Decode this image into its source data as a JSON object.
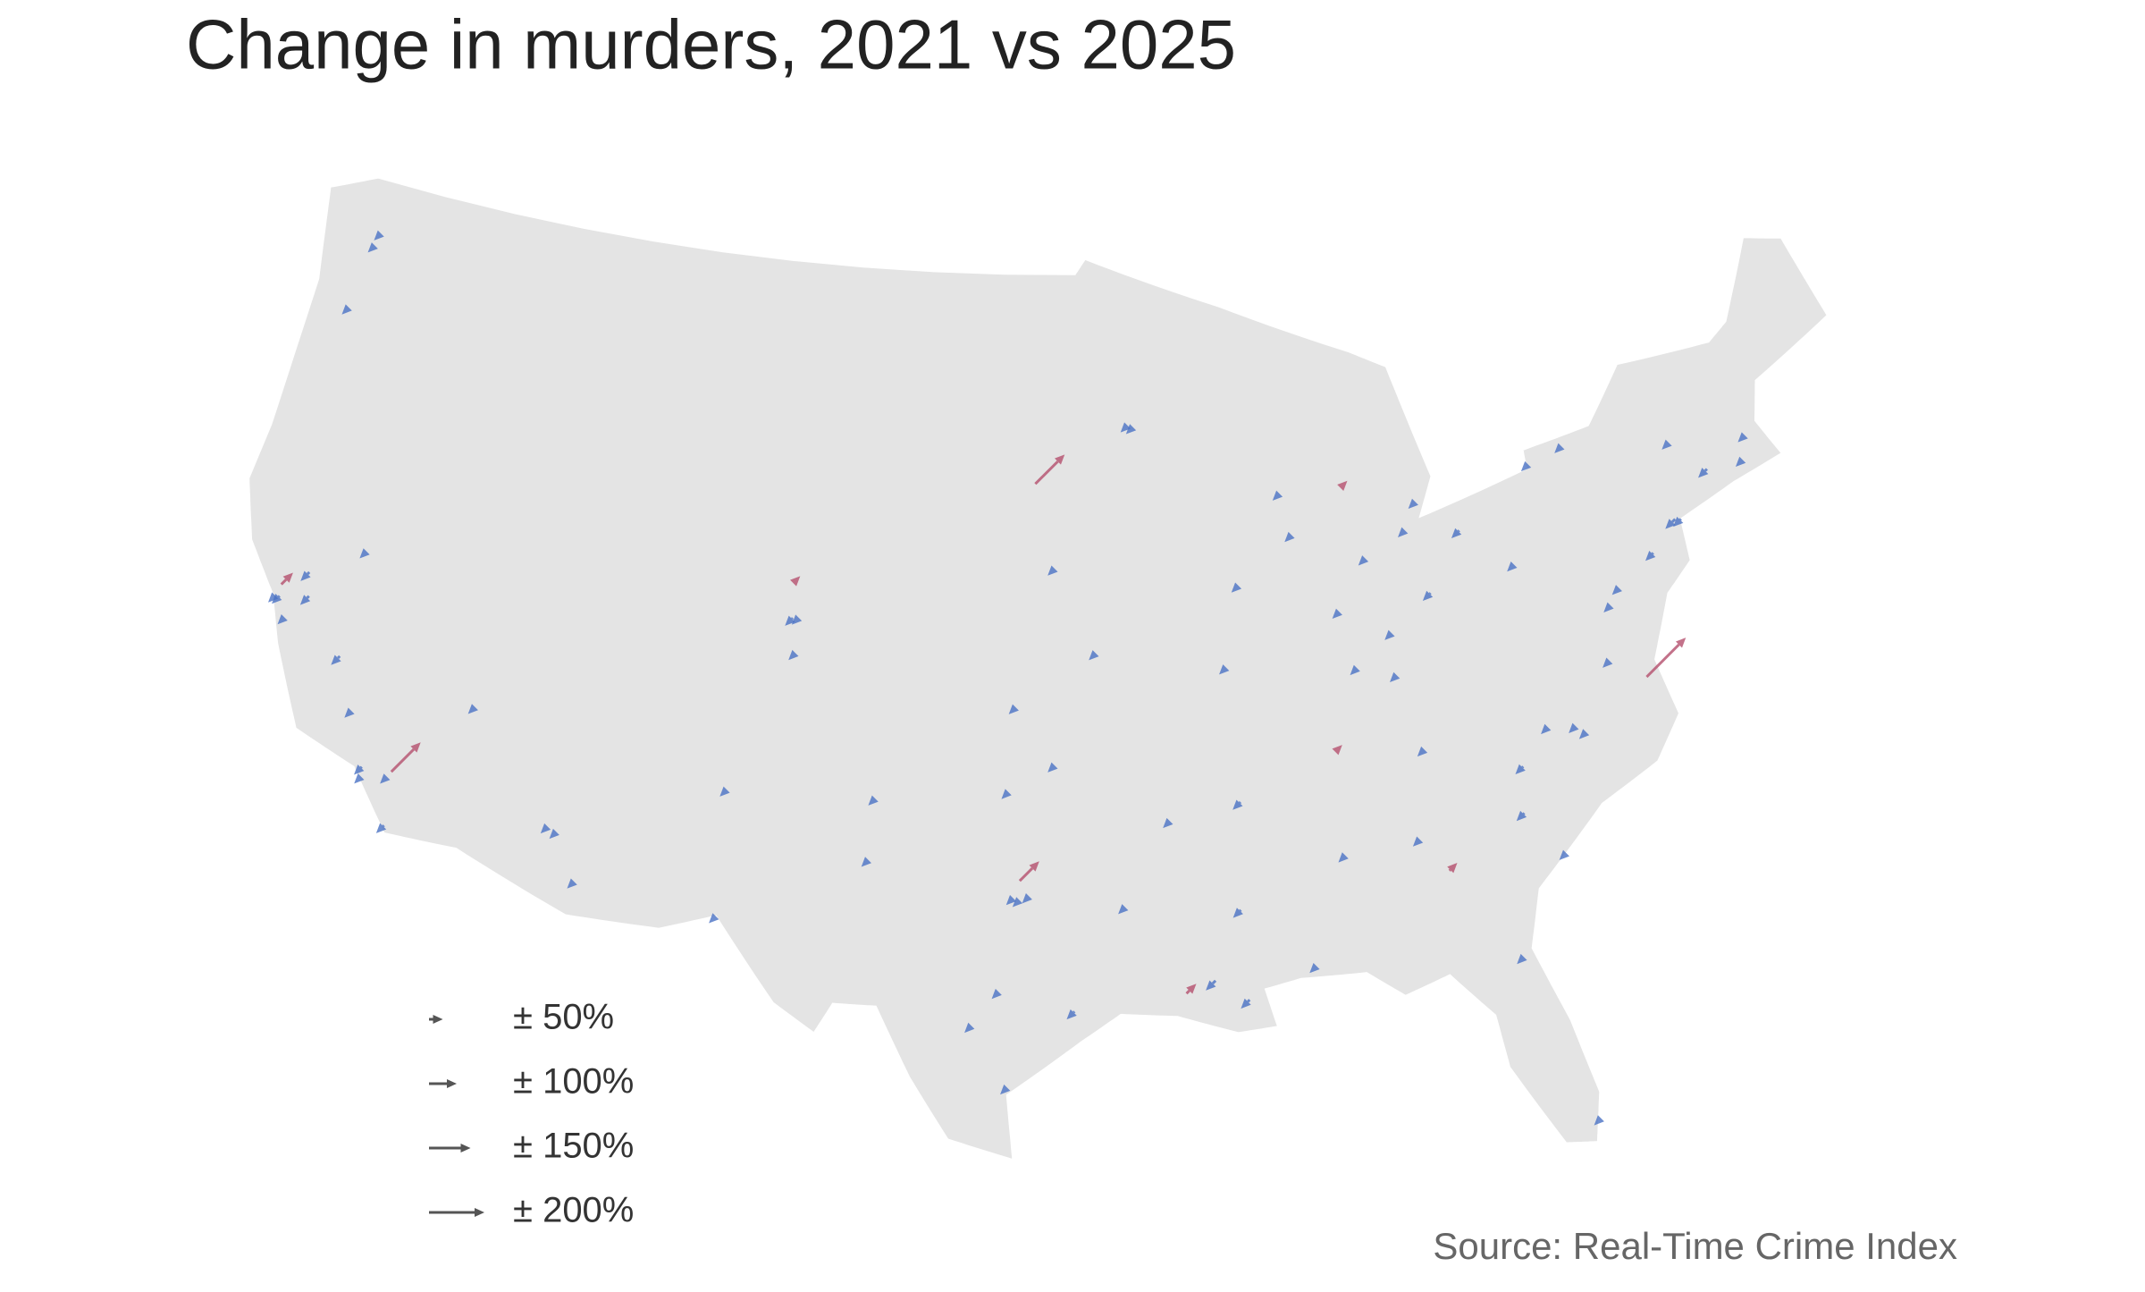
{
  "title": "Change in murders, 2021 vs 2025",
  "source": "Source: Real-Time Crime Index",
  "colors": {
    "increase": "#b5506e",
    "decrease": "#4a72c4",
    "legend": "#555555"
  },
  "legend": {
    "keys": [
      {
        "value": 50,
        "label": "± 50%"
      },
      {
        "value": 100,
        "label": "± 100%"
      },
      {
        "value": 150,
        "label": "± 150%"
      },
      {
        "value": 200,
        "label": "± 200%"
      }
    ]
  },
  "markers": [
    {
      "lon": -122.3,
      "lat": 47.6,
      "change": -30
    },
    {
      "lon": -122.4,
      "lat": 47.25,
      "change": -35
    },
    {
      "lon": -122.7,
      "lat": 45.5,
      "change": -30
    },
    {
      "lon": -122.4,
      "lat": 37.78,
      "change": -35
    },
    {
      "lon": -122.25,
      "lat": 37.8,
      "change": -40
    },
    {
      "lon": -122.3,
      "lat": 38.1,
      "change": 60
    },
    {
      "lon": -121.9,
      "lat": 37.3,
      "change": -30
    },
    {
      "lon": -121.5,
      "lat": 38.6,
      "change": -45
    },
    {
      "lon": -121.3,
      "lat": 38.0,
      "change": -45
    },
    {
      "lon": -119.8,
      "lat": 36.7,
      "change": -45
    },
    {
      "lon": -119.0,
      "lat": 35.4,
      "change": -25
    },
    {
      "lon": -118.25,
      "lat": 34.05,
      "change": -40
    },
    {
      "lon": -118.2,
      "lat": 33.8,
      "change": -30
    },
    {
      "lon": -117.3,
      "lat": 34.1,
      "change": 150
    },
    {
      "lon": -117.4,
      "lat": 33.95,
      "change": -25
    },
    {
      "lon": -117.15,
      "lat": 32.7,
      "change": -40
    },
    {
      "lon": -115.1,
      "lat": 36.2,
      "change": -35
    },
    {
      "lon": -119.8,
      "lat": 39.5,
      "change": -20
    },
    {
      "lon": -112.1,
      "lat": 33.5,
      "change": -35
    },
    {
      "lon": -111.8,
      "lat": 33.4,
      "change": -35
    },
    {
      "lon": -111.0,
      "lat": 32.2,
      "change": -20
    },
    {
      "lon": -106.6,
      "lat": 35.1,
      "change": -30
    },
    {
      "lon": -106.5,
      "lat": 31.8,
      "change": -20
    },
    {
      "lon": -105.0,
      "lat": 39.7,
      "change": -40
    },
    {
      "lon": -104.8,
      "lat": 39.72,
      "change": -30
    },
    {
      "lon": -104.8,
      "lat": 38.8,
      "change": -20
    },
    {
      "lon": -105.1,
      "lat": 40.6,
      "change": 30
    },
    {
      "lon": -93.3,
      "lat": 45.0,
      "change": -30
    },
    {
      "lon": -93.1,
      "lat": 44.95,
      "change": -25
    },
    {
      "lon": -96.7,
      "lat": 43.5,
      "change": 150
    },
    {
      "lon": -96.0,
      "lat": 41.3,
      "change": -25
    },
    {
      "lon": -94.6,
      "lat": 39.1,
      "change": -30
    },
    {
      "lon": -97.3,
      "lat": 37.7,
      "change": -30
    },
    {
      "lon": -97.5,
      "lat": 35.5,
      "change": -25
    },
    {
      "lon": -96.0,
      "lat": 36.2,
      "change": -35
    },
    {
      "lon": -101.9,
      "lat": 33.6,
      "change": -30
    },
    {
      "lon": -101.8,
      "lat": 35.2,
      "change": -20
    },
    {
      "lon": -96.8,
      "lat": 32.8,
      "change": -35
    },
    {
      "lon": -97.3,
      "lat": 32.75,
      "change": -25
    },
    {
      "lon": -97.1,
      "lat": 32.7,
      "change": -30
    },
    {
      "lon": -97.1,
      "lat": 33.2,
      "change": 100
    },
    {
      "lon": -97.7,
      "lat": 30.3,
      "change": -30
    },
    {
      "lon": -98.5,
      "lat": 29.4,
      "change": -35
    },
    {
      "lon": -95.4,
      "lat": 29.8,
      "change": -40
    },
    {
      "lon": -97.4,
      "lat": 27.8,
      "change": -30
    },
    {
      "lon": -93.8,
      "lat": 32.5,
      "change": -35
    },
    {
      "lon": -92.3,
      "lat": 34.7,
      "change": -35
    },
    {
      "lon": -91.1,
      "lat": 30.5,
      "change": -50
    },
    {
      "lon": -92.0,
      "lat": 30.2,
      "change": 50
    },
    {
      "lon": -90.1,
      "lat": 29.95,
      "change": -45
    },
    {
      "lon": -90.2,
      "lat": 32.3,
      "change": -40
    },
    {
      "lon": -90.0,
      "lat": 35.1,
      "change": -40
    },
    {
      "lon": -86.8,
      "lat": 36.2,
      "change": 20
    },
    {
      "lon": -86.8,
      "lat": 33.5,
      "change": -20
    },
    {
      "lon": -88.0,
      "lat": 30.7,
      "change": -20
    },
    {
      "lon": -84.4,
      "lat": 33.7,
      "change": -35
    },
    {
      "lon": -83.6,
      "lat": 32.8,
      "change": 40
    },
    {
      "lon": -81.7,
      "lat": 30.3,
      "change": -20
    },
    {
      "lon": -80.2,
      "lat": 25.8,
      "change": -30
    },
    {
      "lon": -80.8,
      "lat": 35.2,
      "change": -40
    },
    {
      "lon": -78.6,
      "lat": 35.8,
      "change": -30
    },
    {
      "lon": -78.9,
      "lat": 36.0,
      "change": -25
    },
    {
      "lon": -79.8,
      "lat": 36.1,
      "change": -20
    },
    {
      "lon": -81.0,
      "lat": 34.0,
      "change": -40
    },
    {
      "lon": -79.9,
      "lat": 32.8,
      "change": -35
    },
    {
      "lon": -76.3,
      "lat": 36.9,
      "change": 200
    },
    {
      "lon": -77.4,
      "lat": 37.5,
      "change": -30
    },
    {
      "lon": -76.6,
      "lat": 39.3,
      "change": -30
    },
    {
      "lon": -77.0,
      "lat": 38.9,
      "change": -35
    },
    {
      "lon": -75.2,
      "lat": 40.0,
      "change": -40
    },
    {
      "lon": -74.0,
      "lat": 40.7,
      "change": -40
    },
    {
      "lon": -74.2,
      "lat": 40.73,
      "change": -50
    },
    {
      "lon": -71.1,
      "lat": 42.4,
      "change": -20
    },
    {
      "lon": -72.7,
      "lat": 41.8,
      "change": -45
    },
    {
      "lon": -71.4,
      "lat": 41.8,
      "change": -20
    },
    {
      "lon": -78.9,
      "lat": 42.9,
      "change": -35
    },
    {
      "lon": -77.6,
      "lat": 43.2,
      "change": -20
    },
    {
      "lon": -73.8,
      "lat": 42.7,
      "change": -20
    },
    {
      "lon": -80.0,
      "lat": 40.4,
      "change": -30
    },
    {
      "lon": -81.7,
      "lat": 41.5,
      "change": -40
    },
    {
      "lon": -83.6,
      "lat": 41.7,
      "change": -30
    },
    {
      "lon": -83.0,
      "lat": 40.0,
      "change": -40
    },
    {
      "lon": -84.5,
      "lat": 39.1,
      "change": -25
    },
    {
      "lon": -83.1,
      "lat": 42.4,
      "change": -30
    },
    {
      "lon": -85.7,
      "lat": 43.0,
      "change": 25
    },
    {
      "lon": -87.6,
      "lat": 41.9,
      "change": -30
    },
    {
      "lon": -87.9,
      "lat": 43.0,
      "change": -20
    },
    {
      "lon": -86.2,
      "lat": 39.8,
      "change": -20
    },
    {
      "lon": -85.1,
      "lat": 41.1,
      "change": -20
    },
    {
      "lon": -85.8,
      "lat": 38.3,
      "change": -30
    },
    {
      "lon": -84.5,
      "lat": 38.0,
      "change": -35
    },
    {
      "lon": -90.2,
      "lat": 38.6,
      "change": -20
    },
    {
      "lon": -89.6,
      "lat": 40.7,
      "change": -25
    },
    {
      "lon": -83.9,
      "lat": 36.0,
      "change": -35
    }
  ]
}
